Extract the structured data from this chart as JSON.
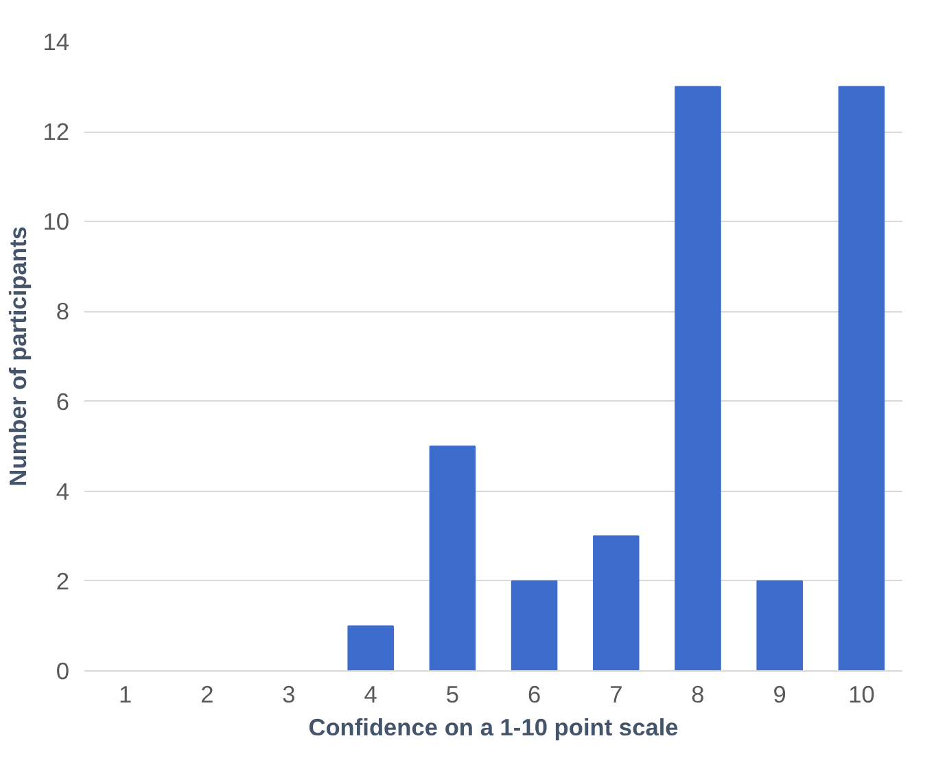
{
  "chart_data": {
    "type": "bar",
    "xlabel": "Confidence on a 1-10 point scale",
    "ylabel": "Number of participants",
    "categories": [
      "1",
      "2",
      "3",
      "4",
      "5",
      "6",
      "7",
      "8",
      "9",
      "10"
    ],
    "values": [
      0,
      0,
      0,
      1,
      5,
      2,
      3,
      13,
      2,
      13
    ],
    "color": "#3d6dcc",
    "ylim": [
      0,
      14
    ],
    "yticks": [
      0,
      2,
      4,
      6,
      8,
      10,
      12,
      14
    ],
    "grid": "y"
  }
}
